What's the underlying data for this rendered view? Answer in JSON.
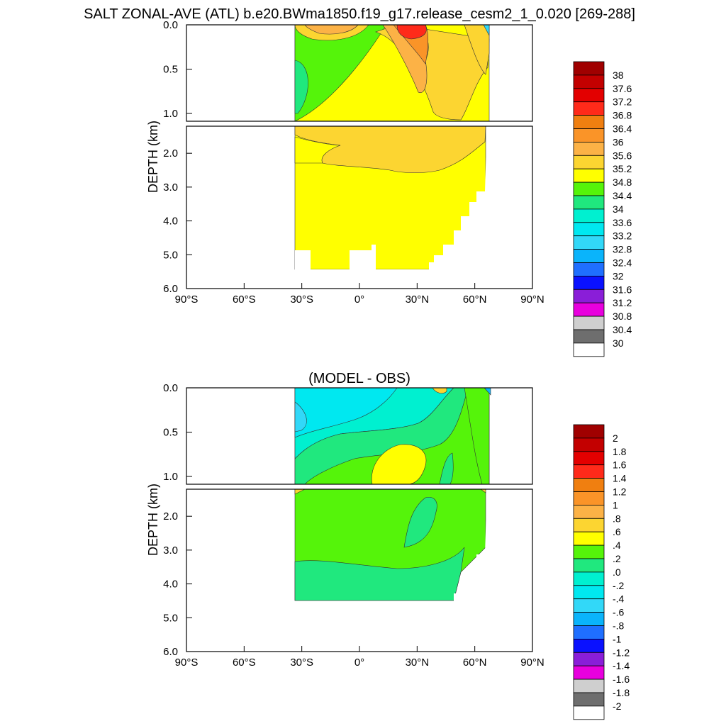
{
  "title": "SALT ZONAL-AVE (ATL) b.e20.BWma1850.f19_g17.release_cesm2_1_0.020 [269-288]",
  "chart_data": [
    {
      "type": "heatmap",
      "title": "",
      "ylabel": "DEPTH (km)",
      "xlim": [
        -90,
        90
      ],
      "ylim": [
        0,
        6
      ],
      "x_tick_labels": [
        "90°S",
        "60°S",
        "30°S",
        "0°",
        "30°N",
        "60°N",
        "90°N"
      ],
      "y_tick_labels_upper": [
        "0.0",
        "0.5",
        "1.0"
      ],
      "y_tick_labels_lower": [
        "2.0",
        "3.0",
        "4.0",
        "5.0",
        "6.0"
      ],
      "colorbar_labels": [
        "38",
        "37.6",
        "37.2",
        "36.8",
        "36.4",
        "36",
        "35.6",
        "35.2",
        "34.8",
        "34.4",
        "34",
        "33.6",
        "33.2",
        "32.8",
        "32.4",
        "32",
        "31.6",
        "31.2",
        "30.8",
        "30.4",
        "30"
      ],
      "colorbar_colors": [
        "#a00000",
        "#c30000",
        "#e30000",
        "#ff2a1a",
        "#f07f10",
        "#fa9428",
        "#fcb246",
        "#fcd531",
        "#ffff00",
        "#55f40a",
        "#20e87e",
        "#00f0d0",
        "#00e8f0",
        "#32d8f8",
        "#0ab4fb",
        "#1f6fff",
        "#0a11ff",
        "#8a1ed8",
        "#e800de",
        "#cfcfcf",
        "#6e6e6e",
        "#ffffff"
      ]
    },
    {
      "type": "heatmap",
      "title": "(MODEL - OBS)",
      "ylabel": "DEPTH (km)",
      "xlim": [
        -90,
        90
      ],
      "ylim": [
        0,
        6
      ],
      "x_tick_labels": [
        "90°S",
        "60°S",
        "30°S",
        "0°",
        "30°N",
        "60°N",
        "90°N"
      ],
      "y_tick_labels_upper": [
        "0.0",
        "0.5",
        "1.0"
      ],
      "y_tick_labels_lower": [
        "2.0",
        "3.0",
        "4.0",
        "5.0",
        "6.0"
      ],
      "colorbar_labels": [
        "2",
        "1.8",
        "1.6",
        "1.4",
        "1.2",
        "1",
        ".8",
        ".6",
        ".4",
        ".2",
        ".0",
        "-.2",
        "-.4",
        "-.6",
        "-.8",
        "-1",
        "-1.2",
        "-1.4",
        "-1.6",
        "-1.8",
        "-2"
      ],
      "colorbar_colors": [
        "#a00000",
        "#c30000",
        "#e30000",
        "#ff2a1a",
        "#f07f10",
        "#fa9428",
        "#fcb246",
        "#fcd531",
        "#ffff00",
        "#55f40a",
        "#20e87e",
        "#00f0d0",
        "#00e8f0",
        "#32d8f8",
        "#0ab4fb",
        "#1f6fff",
        "#0a11ff",
        "#8a1ed8",
        "#e800de",
        "#cfcfcf",
        "#6e6e6e",
        "#ffffff"
      ]
    }
  ]
}
